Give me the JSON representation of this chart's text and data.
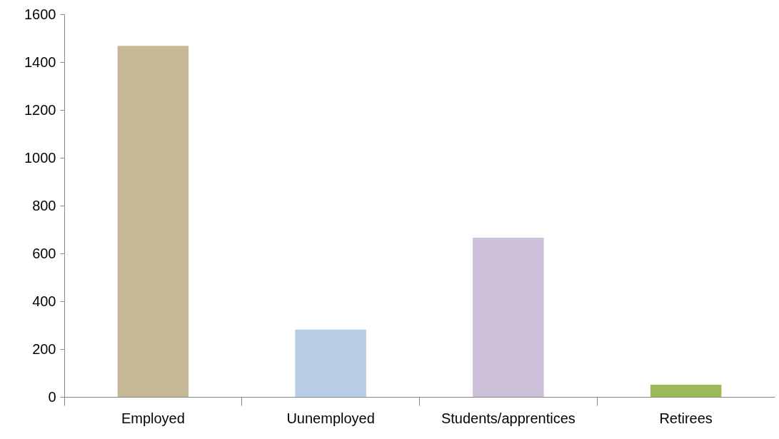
{
  "chart_data": {
    "type": "bar",
    "categories": [
      "Employed",
      "Uunemployed",
      "Students/apprentices",
      "Retirees"
    ],
    "values": [
      1468,
      281,
      666,
      51
    ],
    "colors": [
      "#c4b896",
      "#b8cce4",
      "#ccc0da",
      "#9bbb59"
    ],
    "ylim": [
      0,
      1600
    ],
    "yticks": [
      0,
      200,
      400,
      600,
      800,
      1000,
      1200,
      1400,
      1600
    ],
    "grid": false,
    "legend": false
  }
}
